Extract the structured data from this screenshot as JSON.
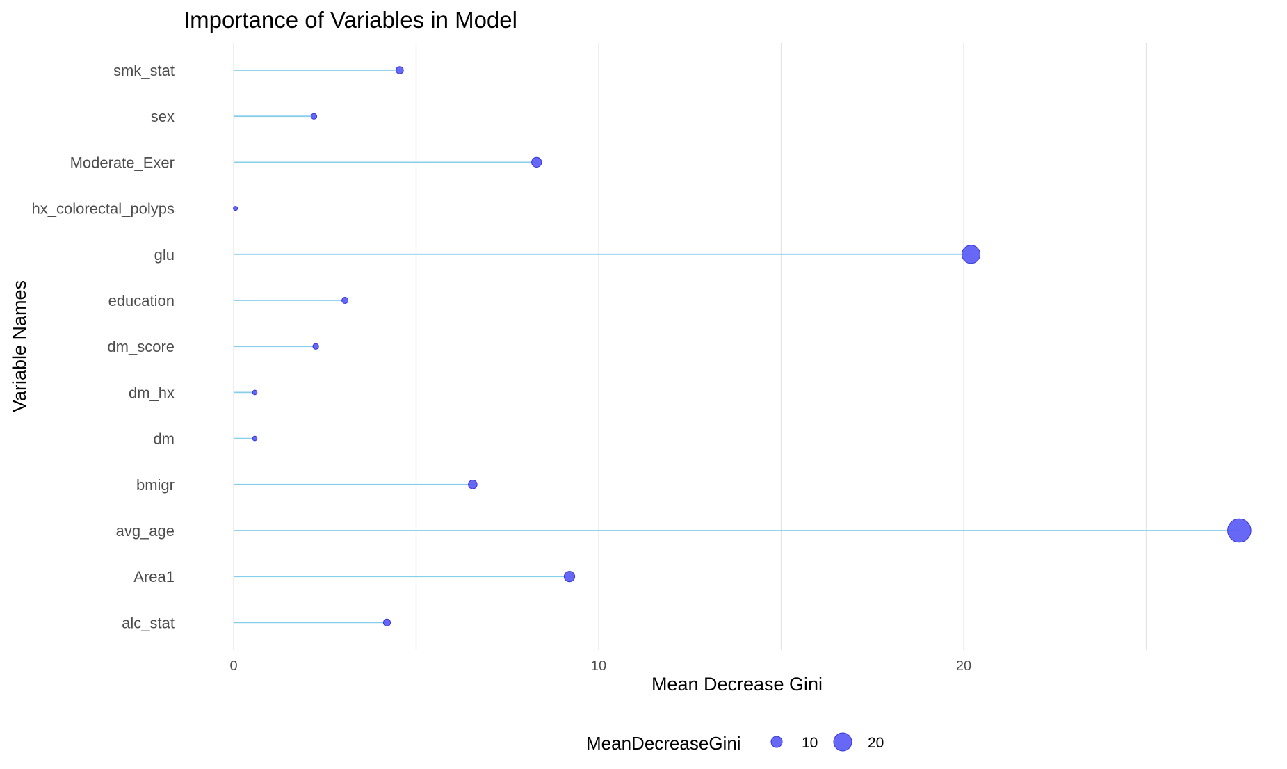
{
  "chart_data": {
    "type": "lollipop",
    "title": "Importance of Variables in Model",
    "xlabel": "Mean Decrease Gini",
    "ylabel": "Variable Names",
    "xlim": [
      -1.5,
      28.5
    ],
    "x_ticks": [
      0,
      10,
      20
    ],
    "x_minor_gridlines": [
      5,
      15,
      25
    ],
    "grid": true,
    "categories_top_to_bottom": [
      "smk_stat",
      "sex",
      "Moderate_Exer",
      "hx_colorectal_polyps",
      "glu",
      "education",
      "dm_score",
      "dm_hx",
      "dm",
      "bmigr",
      "avg_age",
      "Area1",
      "alc_stat"
    ],
    "values": [
      4.55,
      2.2,
      8.3,
      0.05,
      20.2,
      3.05,
      2.25,
      0.58,
      0.58,
      6.55,
      27.55,
      9.2,
      4.2
    ],
    "size_variable": "MeanDecreaseGini",
    "legend": {
      "title": "MeanDecreaseGini",
      "position": "bottom",
      "entries": [
        {
          "label": "10",
          "value": 10
        },
        {
          "label": "20",
          "value": 20
        }
      ]
    },
    "colors": {
      "point_fill": "#5b5bf5",
      "point_stroke": "#3535d8",
      "stem": "#87ceeb",
      "gridline": "#e5e5e5"
    }
  }
}
